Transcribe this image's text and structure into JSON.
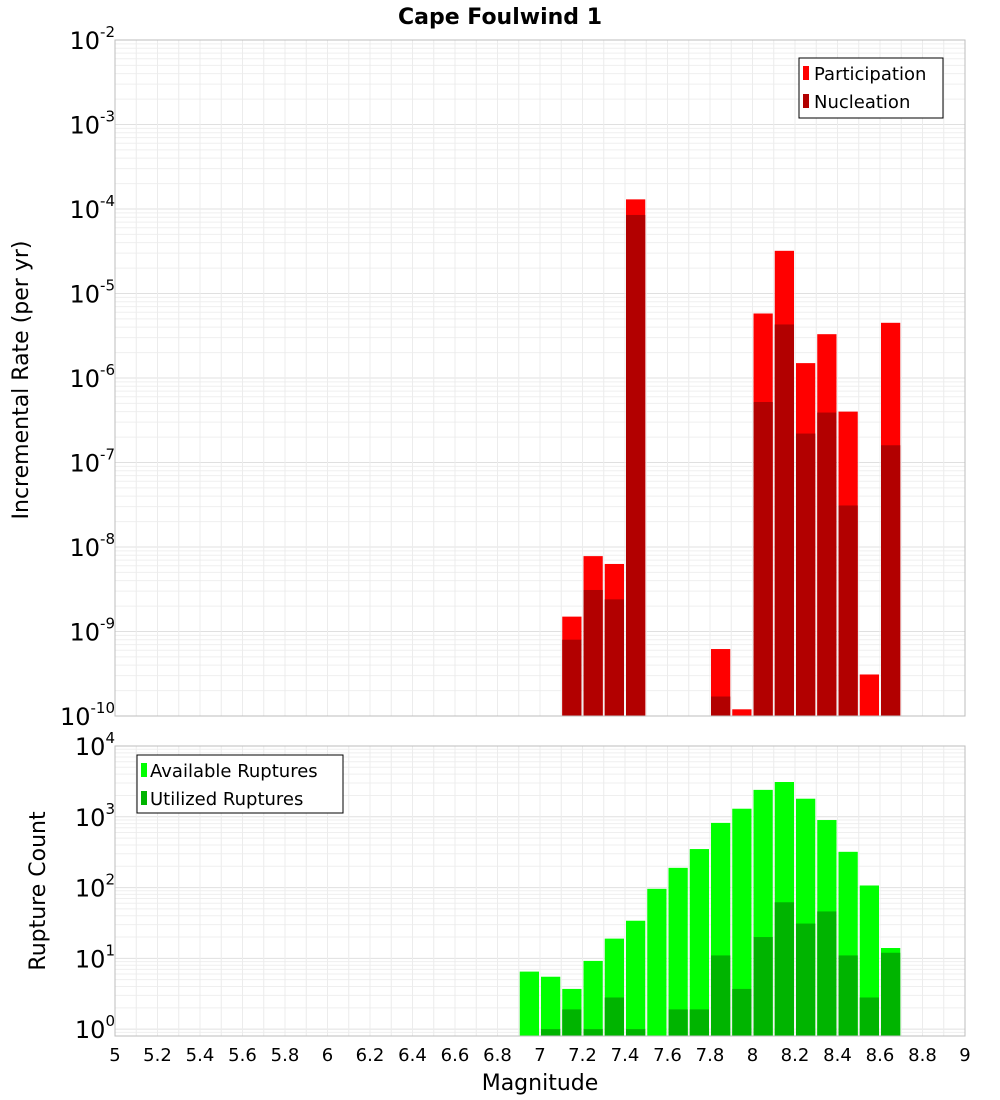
{
  "chart_data": [
    {
      "type": "bar",
      "title": "Cape Foulwind 1",
      "xlabel": "",
      "ylabel": "Incremental Rate (per yr)",
      "yscale": "log",
      "ylim": [
        1e-10,
        0.01
      ],
      "y_tick_exponents": [
        -10,
        -9,
        -8,
        -7,
        -6,
        -5,
        -4,
        -3,
        -2
      ],
      "xlim": [
        5,
        9
      ],
      "grid": true,
      "legend_position": "top-right",
      "x": [
        7.15,
        7.25,
        7.35,
        7.45,
        7.85,
        7.95,
        8.05,
        8.15,
        8.25,
        8.35,
        8.45,
        8.55,
        8.65
      ],
      "series": [
        {
          "name": "Participation",
          "color": "#ff0000",
          "values": [
            1.5e-09,
            7.8e-09,
            6.3e-09,
            0.00013,
            6.2e-10,
            1.2e-10,
            5.8e-06,
            3.2e-05,
            1.5e-06,
            3.3e-06,
            4e-07,
            3.1e-10,
            4.5e-06
          ]
        },
        {
          "name": "Nucleation",
          "color": "#b20000",
          "values": [
            8e-10,
            3.1e-09,
            2.4e-09,
            8.5e-05,
            1.7e-10,
            null,
            5.2e-07,
            4.3e-06,
            2.2e-07,
            3.9e-07,
            3.1e-08,
            null,
            1.6e-07
          ]
        }
      ]
    },
    {
      "type": "bar",
      "title": "",
      "xlabel": "Magnitude",
      "ylabel": "Rupture Count",
      "yscale": "log",
      "ylim": [
        0.8,
        10000
      ],
      "y_tick_exponents": [
        0,
        1,
        2,
        3,
        4
      ],
      "xlim": [
        5,
        9
      ],
      "x_ticks": [
        "5",
        "5.2",
        "5.4",
        "5.6",
        "5.8",
        "6",
        "6.2",
        "6.4",
        "6.6",
        "6.8",
        "7",
        "7.2",
        "7.4",
        "7.6",
        "7.8",
        "8",
        "8.2",
        "8.4",
        "8.6",
        "8.8",
        "9"
      ],
      "grid": true,
      "legend_position": "top-left",
      "x": [
        6.95,
        7.05,
        7.15,
        7.25,
        7.35,
        7.45,
        7.55,
        7.65,
        7.75,
        7.85,
        7.95,
        8.05,
        8.15,
        8.25,
        8.35,
        8.45,
        8.55,
        8.65
      ],
      "series": [
        {
          "name": "Available Ruptures",
          "color": "#00ff00",
          "values": [
            6.5,
            5.5,
            3.7,
            9.2,
            19,
            34,
            96,
            190,
            350,
            820,
            1300,
            2400,
            3100,
            1800,
            900,
            320,
            107,
            14
          ]
        },
        {
          "name": "Utilized Ruptures",
          "color": "#00b400",
          "values": [
            null,
            1,
            1.9,
            1,
            2.8,
            1,
            null,
            1.9,
            1.9,
            11,
            3.7,
            20,
            62,
            31,
            46,
            11,
            2.8,
            12
          ]
        }
      ]
    }
  ]
}
